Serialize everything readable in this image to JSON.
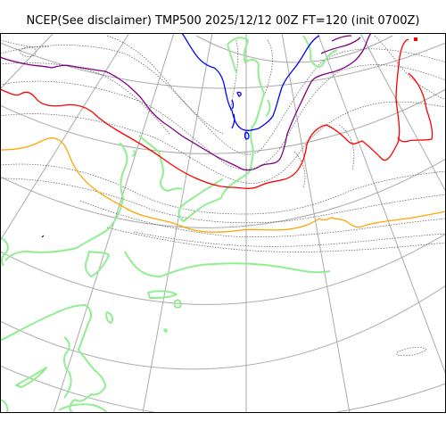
{
  "title": "NCEP(See disclaimer) TMP500 2025/12/12 00Z FT=120 (init 0700Z)",
  "legend": [
    {
      "contour": "isotherm",
      "color": "#0000ff"
    },
    {
      "contour": "isotherm",
      "color": "#800080"
    },
    {
      "contour": "isotherm",
      "color": "#ff0000"
    },
    {
      "contour": "isotherm",
      "color": "#ffa500"
    },
    {
      "contour": "isotherm-minor",
      "color": "#555555"
    }
  ],
  "colors": {
    "coastline": "#90ee90",
    "graticule": "#aaaaaa",
    "frame": "#000000"
  }
}
